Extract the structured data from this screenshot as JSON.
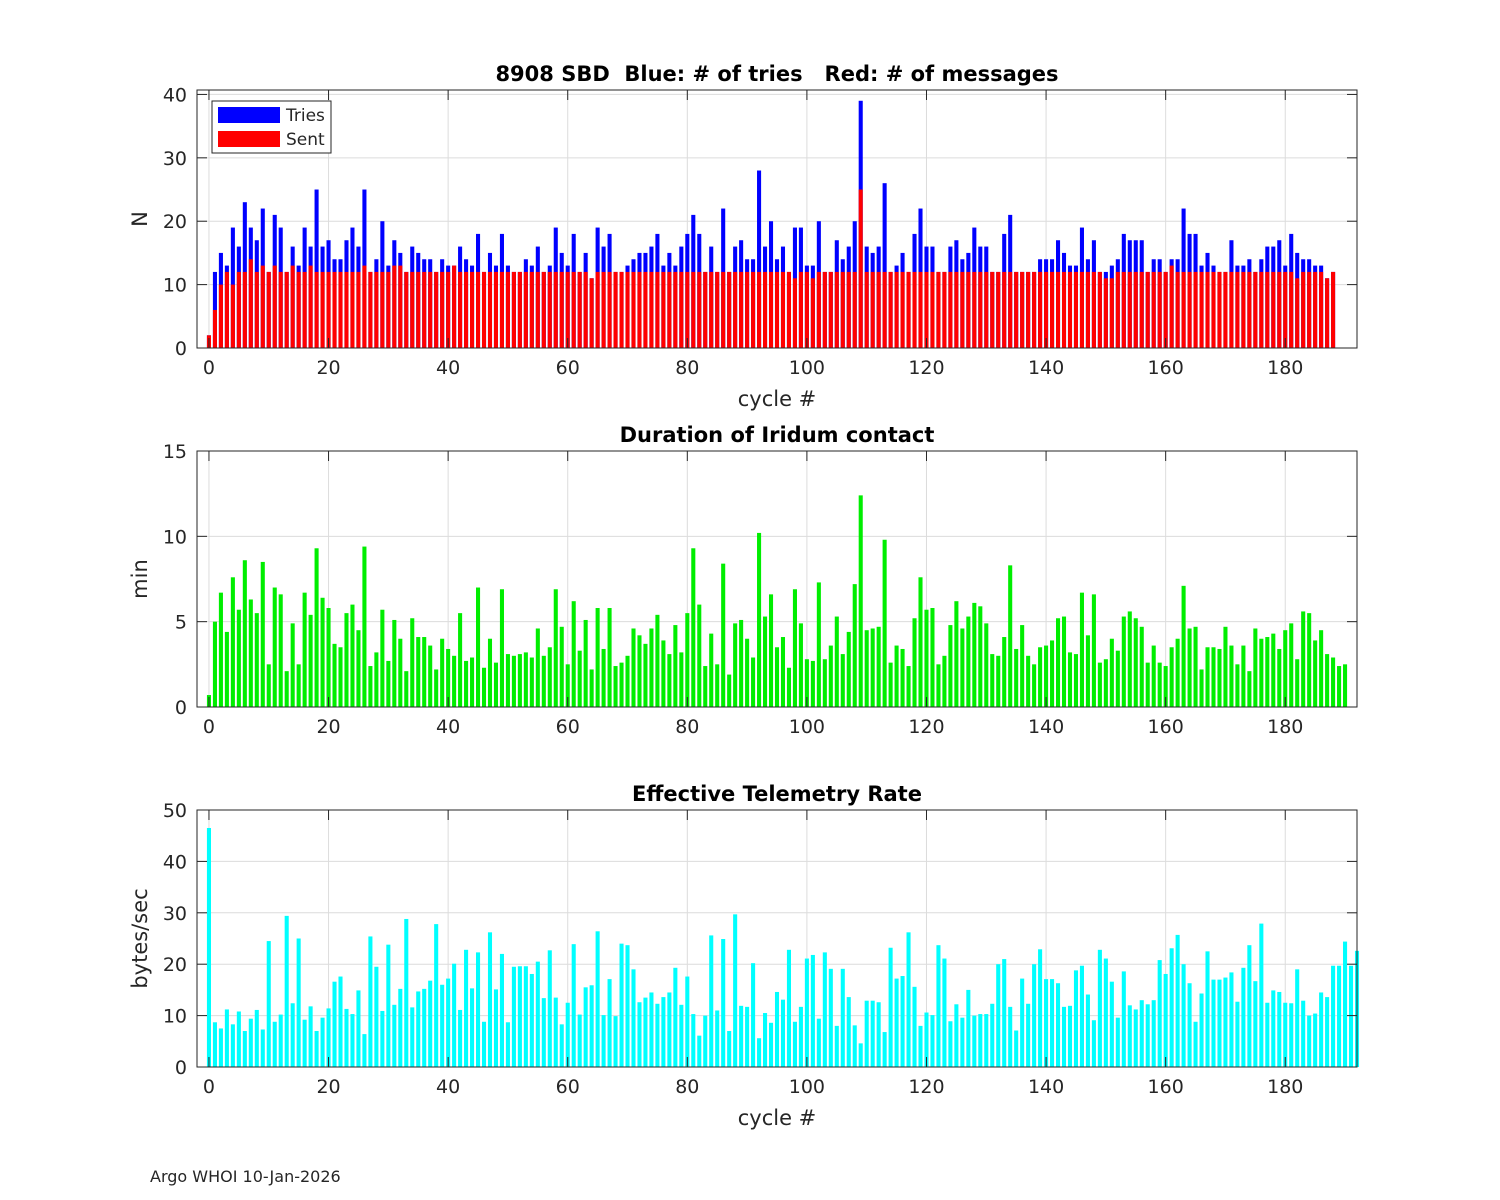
{
  "chart_data": [
    {
      "type": "bar",
      "title": "8908 SBD  Blue: # of tries   Red: # of messages",
      "xlabel": "cycle #",
      "ylabel": "N",
      "xlim": [
        -2,
        192
      ],
      "ylim": [
        0,
        40.7
      ],
      "xticks": [
        0,
        20,
        40,
        60,
        80,
        100,
        120,
        140,
        160,
        180
      ],
      "yticks": [
        0,
        10,
        20,
        30,
        40
      ],
      "grid": true,
      "legend": {
        "placement": "top-left",
        "entries": [
          "Tries",
          "Sent"
        ]
      },
      "x_start": 0,
      "series": [
        {
          "name": "Tries",
          "color": "#0000ff",
          "values": [
            2,
            12,
            15,
            13,
            19,
            16,
            23,
            19,
            17,
            22,
            12,
            21,
            19,
            12,
            16,
            13,
            19,
            16,
            25,
            16,
            17,
            14,
            14,
            17,
            19,
            16,
            25,
            12,
            14,
            20,
            13,
            17,
            15,
            12,
            16,
            15,
            14,
            14,
            12,
            14,
            13,
            13,
            16,
            14,
            13,
            18,
            12,
            15,
            13,
            18,
            13,
            12,
            12,
            14,
            13,
            16,
            12,
            13,
            19,
            15,
            13,
            18,
            12,
            15,
            11,
            19,
            16,
            18,
            12,
            12,
            13,
            14,
            15,
            15,
            16,
            18,
            13,
            15,
            13,
            16,
            18,
            21,
            18,
            12,
            16,
            12,
            22,
            12,
            16,
            17,
            14,
            14,
            28,
            16,
            20,
            14,
            16,
            12,
            19,
            19,
            13,
            13,
            20,
            12,
            12,
            17,
            14,
            16,
            20,
            39,
            16,
            15,
            16,
            26,
            12,
            13,
            15,
            12,
            18,
            22,
            16,
            16,
            12,
            12,
            16,
            17,
            14,
            15,
            19,
            16,
            16,
            12,
            12,
            18,
            21,
            12,
            12,
            12,
            12,
            14,
            14,
            14,
            17,
            15,
            13,
            13,
            19,
            14,
            17,
            12,
            12,
            13,
            14,
            18,
            17,
            17,
            17,
            12,
            14,
            14,
            12,
            14,
            14,
            22,
            18,
            18,
            13,
            15,
            13,
            12,
            12,
            17,
            13,
            13,
            14,
            12,
            14,
            16,
            16,
            17,
            13,
            18,
            15,
            14,
            14,
            13,
            13,
            11,
            12
          ]
        },
        {
          "name": "Sent",
          "color": "#ff0000",
          "values": [
            2,
            6,
            10,
            12,
            10,
            12,
            12,
            14,
            12,
            13,
            12,
            13,
            12,
            12,
            13,
            12,
            12,
            13,
            12,
            12,
            12,
            12,
            12,
            12,
            12,
            12,
            13,
            12,
            12,
            12,
            12,
            13,
            13,
            12,
            12,
            12,
            12,
            12,
            12,
            12,
            12,
            13,
            12,
            12,
            12,
            12,
            12,
            12,
            12,
            12,
            12,
            12,
            12,
            12,
            12,
            12,
            12,
            12,
            12,
            12,
            12,
            12,
            12,
            12,
            11,
            12,
            12,
            12,
            12,
            12,
            12,
            12,
            12,
            12,
            12,
            12,
            12,
            12,
            12,
            12,
            12,
            12,
            12,
            12,
            12,
            12,
            12,
            12,
            12,
            12,
            12,
            12,
            12,
            12,
            12,
            12,
            12,
            12,
            11,
            12,
            12,
            11,
            12,
            12,
            12,
            12,
            12,
            12,
            12,
            25,
            12,
            12,
            12,
            12,
            12,
            12,
            12,
            12,
            12,
            12,
            12,
            12,
            12,
            12,
            12,
            12,
            12,
            12,
            12,
            12,
            12,
            12,
            12,
            12,
            12,
            12,
            12,
            12,
            12,
            12,
            12,
            12,
            12,
            12,
            12,
            12,
            12,
            12,
            12,
            12,
            11,
            11,
            12,
            12,
            12,
            12,
            12,
            12,
            12,
            12,
            12,
            13,
            12,
            12,
            12,
            12,
            12,
            12,
            12,
            12,
            12,
            12,
            12,
            12,
            12,
            12,
            12,
            12,
            12,
            12,
            12,
            12,
            11,
            12,
            12,
            12,
            12,
            11,
            12
          ]
        }
      ]
    },
    {
      "type": "bar",
      "title": "Duration of Iridum contact",
      "xlabel": "",
      "ylabel": "min",
      "xlim": [
        -2,
        192
      ],
      "ylim": [
        0,
        15
      ],
      "xticks": [
        0,
        20,
        40,
        60,
        80,
        100,
        120,
        140,
        160,
        180
      ],
      "yticks": [
        0,
        5,
        10,
        15
      ],
      "grid": true,
      "x_start": 0,
      "series": [
        {
          "name": "Duration",
          "color": "#00ee00",
          "values": [
            0.7,
            5.0,
            6.7,
            4.4,
            7.6,
            5.7,
            8.6,
            6.3,
            5.5,
            8.5,
            2.5,
            7.0,
            6.6,
            2.1,
            4.9,
            2.5,
            6.7,
            5.4,
            9.3,
            6.4,
            5.8,
            3.7,
            3.5,
            5.5,
            6.0,
            4.5,
            9.4,
            2.4,
            3.2,
            5.7,
            2.7,
            5.1,
            4.0,
            2.1,
            5.2,
            4.1,
            4.1,
            3.6,
            2.2,
            4.0,
            3.4,
            3.0,
            5.5,
            2.7,
            2.9,
            7.0,
            2.3,
            4.0,
            2.6,
            6.9,
            3.1,
            3.0,
            3.1,
            3.2,
            2.9,
            4.6,
            3.0,
            3.5,
            6.9,
            4.7,
            2.5,
            6.2,
            3.3,
            5.1,
            2.2,
            5.8,
            3.4,
            5.8,
            2.4,
            2.6,
            3.0,
            4.6,
            4.2,
            3.7,
            4.6,
            5.4,
            3.9,
            3.1,
            4.8,
            3.2,
            5.5,
            9.3,
            6.0,
            2.4,
            4.3,
            2.5,
            8.4,
            1.9,
            4.9,
            5.1,
            4.0,
            2.9,
            10.2,
            5.3,
            6.6,
            3.5,
            4.1,
            2.3,
            6.9,
            4.9,
            2.8,
            2.7,
            7.3,
            2.8,
            3.6,
            5.3,
            3.1,
            4.4,
            7.2,
            12.4,
            4.5,
            4.6,
            4.7,
            9.8,
            2.6,
            3.6,
            3.4,
            2.4,
            5.2,
            7.6,
            5.7,
            5.8,
            2.5,
            3.0,
            4.8,
            6.2,
            4.6,
            5.3,
            6.1,
            5.9,
            4.9,
            3.1,
            3.0,
            4.1,
            8.3,
            3.4,
            4.8,
            3.0,
            2.5,
            3.5,
            3.6,
            3.9,
            5.2,
            5.3,
            3.2,
            3.1,
            6.7,
            4.2,
            6.6,
            2.6,
            2.8,
            4.0,
            3.3,
            5.3,
            5.6,
            5.2,
            4.7,
            2.6,
            3.6,
            2.6,
            2.4,
            3.5,
            4.0,
            7.1,
            4.6,
            4.7,
            2.2,
            3.5,
            3.5,
            3.4,
            4.7,
            3.6,
            2.5,
            3.6,
            2.1,
            4.6,
            4.0,
            4.1,
            4.3,
            3.4,
            4.5,
            4.9,
            2.8,
            5.6,
            5.5,
            3.9,
            4.5,
            3.1,
            2.9,
            2.4,
            2.5
          ]
        }
      ]
    },
    {
      "type": "bar",
      "title": "Effective Telemetry Rate",
      "xlabel": "cycle #",
      "ylabel": "bytes/sec",
      "xlim": [
        -2,
        192
      ],
      "ylim": [
        0,
        50
      ],
      "xticks": [
        0,
        20,
        40,
        60,
        80,
        100,
        120,
        140,
        160,
        180
      ],
      "yticks": [
        0,
        10,
        20,
        30,
        40,
        50
      ],
      "grid": true,
      "x_start": 0,
      "series": [
        {
          "name": "Rate",
          "color": "#00ffff",
          "values": [
            46.5,
            8.7,
            7.5,
            11.2,
            8.3,
            10.8,
            7.0,
            9.4,
            11.1,
            7.3,
            24.5,
            8.8,
            10.2,
            29.4,
            12.4,
            25.0,
            9.2,
            11.8,
            7.0,
            9.6,
            11.4,
            16.6,
            17.6,
            11.3,
            10.3,
            14.9,
            6.4,
            25.4,
            19.5,
            10.9,
            23.8,
            12.1,
            15.2,
            28.8,
            11.6,
            14.7,
            15.2,
            16.8,
            27.8,
            16.0,
            17.2,
            20.1,
            11.1,
            22.8,
            15.3,
            22.3,
            8.8,
            26.2,
            15.1,
            22.0,
            8.7,
            19.5,
            19.6,
            19.6,
            18.1,
            20.5,
            13.4,
            22.7,
            13.5,
            8.3,
            12.5,
            23.9,
            10.2,
            15.5,
            15.9,
            26.4,
            10.1,
            17.1,
            9.9,
            24.0,
            23.7,
            19.0,
            12.6,
            13.5,
            14.5,
            12.3,
            13.6,
            14.5,
            19.3,
            12.1,
            17.6,
            10.3,
            6.1,
            10.0,
            25.6,
            11.0,
            24.9,
            7.0,
            29.7,
            11.9,
            11.7,
            20.2,
            5.6,
            10.5,
            8.6,
            14.6,
            13.1,
            22.8,
            8.8,
            11.7,
            21.1,
            21.8,
            9.4,
            22.3,
            19.1,
            8.0,
            19.1,
            13.6,
            8.1,
            4.6,
            12.9,
            12.9,
            12.6,
            6.8,
            23.2,
            17.2,
            17.7,
            26.2,
            15.6,
            8.0,
            10.6,
            10.1,
            23.7,
            21.1,
            8.9,
            12.2,
            9.6,
            15.0,
            10.0,
            10.3,
            10.3,
            12.3,
            20.0,
            21.0,
            11.7,
            7.1,
            17.2,
            12.3,
            20.0,
            22.9,
            17.1,
            17.1,
            16.3,
            11.7,
            11.9,
            18.8,
            19.7,
            14.1,
            9.1,
            22.8,
            21.1,
            16.6,
            9.6,
            18.6,
            12.0,
            11.2,
            13.0,
            12.2,
            13.0,
            20.8,
            18.1,
            23.1,
            25.7,
            20.0,
            16.3,
            8.8,
            14.3,
            22.5,
            17.0,
            17.0,
            17.4,
            18.4,
            12.7,
            19.3,
            23.7,
            16.7,
            27.9,
            12.5,
            14.9,
            14.6,
            12.5,
            12.4,
            19.0,
            12.9,
            10.0,
            10.4,
            14.5,
            13.6,
            19.7,
            19.7,
            24.4,
            19.7,
            22.6
          ]
        }
      ]
    }
  ],
  "footer": "Argo WHOI 10-Jan-2026"
}
